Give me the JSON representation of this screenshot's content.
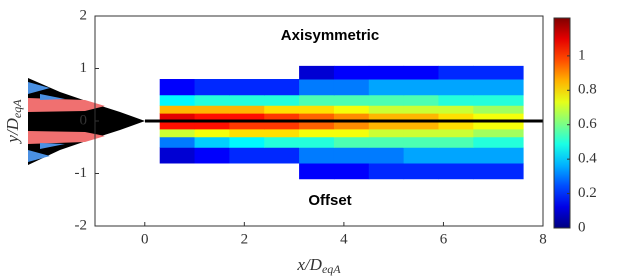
{
  "chart_data": {
    "type": "heatmap",
    "annotations": [
      "Axisymmetric",
      "Offset"
    ],
    "xlabel": {
      "main": "x/D",
      "sub": "eqA"
    },
    "ylabel": {
      "main": "y/D",
      "sub": "eqA"
    },
    "xlim": [
      -1,
      8
    ],
    "xticks": [
      0,
      2,
      4,
      6,
      8
    ],
    "ylim": [
      -2,
      2
    ],
    "yticks": [
      -2,
      -1,
      0,
      1,
      2
    ],
    "clim": [
      0,
      1.22
    ],
    "cticks": [
      0,
      0.2,
      0.4,
      0.6,
      0.8,
      1
    ],
    "colormap": "jet",
    "x_edges": [
      0.3,
      1.0,
      1.7,
      2.4,
      3.1,
      3.8,
      4.5,
      5.2,
      5.9,
      6.6,
      7.6
    ],
    "y_edges": [
      -1.1,
      -0.8,
      -0.5,
      -0.3,
      -0.15,
      0,
      0.15,
      0.3,
      0.5,
      0.8,
      1.05
    ],
    "z": [
      [
        null,
        null,
        null,
        null,
        0.15,
        0.15,
        0.2,
        0.2,
        0.2,
        0.2
      ],
      [
        0.1,
        0.15,
        0.2,
        0.2,
        0.3,
        0.3,
        0.3,
        0.35,
        0.35,
        0.35
      ],
      [
        0.3,
        0.4,
        0.45,
        0.5,
        0.5,
        0.55,
        0.55,
        0.55,
        0.55,
        0.5
      ],
      [
        0.7,
        0.75,
        0.8,
        0.8,
        0.75,
        0.75,
        0.7,
        0.7,
        0.7,
        0.65
      ],
      [
        1.05,
        1.05,
        1.0,
        1.0,
        0.95,
        0.9,
        0.85,
        0.85,
        0.8,
        0.75
      ],
      [
        1.1,
        1.05,
        1.05,
        1.0,
        0.95,
        0.9,
        0.85,
        0.85,
        0.8,
        0.75
      ],
      [
        0.85,
        0.85,
        0.85,
        0.8,
        0.8,
        0.75,
        0.7,
        0.7,
        0.7,
        0.65
      ],
      [
        0.45,
        0.5,
        0.5,
        0.5,
        0.55,
        0.55,
        0.55,
        0.55,
        0.5,
        0.5
      ],
      [
        0.15,
        0.2,
        0.2,
        0.2,
        0.3,
        0.3,
        0.35,
        0.35,
        0.35,
        0.35
      ],
      [
        null,
        null,
        null,
        null,
        0.1,
        0.15,
        0.15,
        0.15,
        0.2,
        0.2
      ]
    ]
  }
}
